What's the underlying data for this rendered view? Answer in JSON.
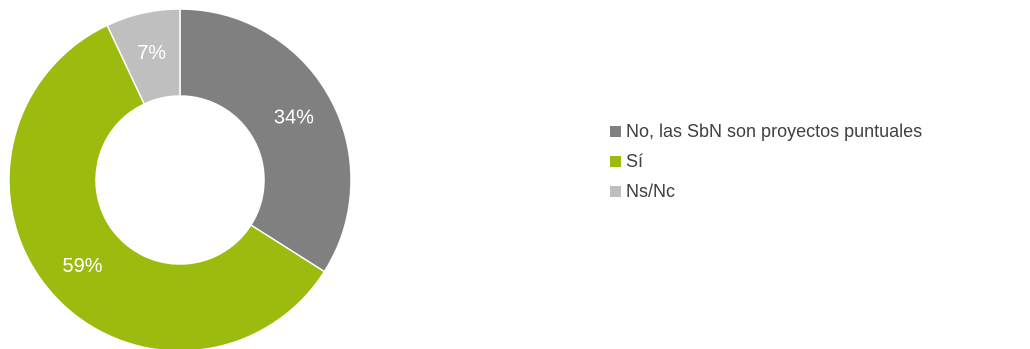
{
  "chart_data": {
    "type": "pie",
    "donut": true,
    "title": "",
    "slices": [
      {
        "name": "No, las SbN son proyectos puntuales",
        "value": 34,
        "label": "34%",
        "color": "#808080"
      },
      {
        "name": "Sí",
        "value": 59,
        "label": "59%",
        "color": "#9BBB0E"
      },
      {
        "name": "Ns/Nc",
        "value": 7,
        "label": "7%",
        "color": "#BFBFBF"
      }
    ],
    "legend_position": "right"
  }
}
